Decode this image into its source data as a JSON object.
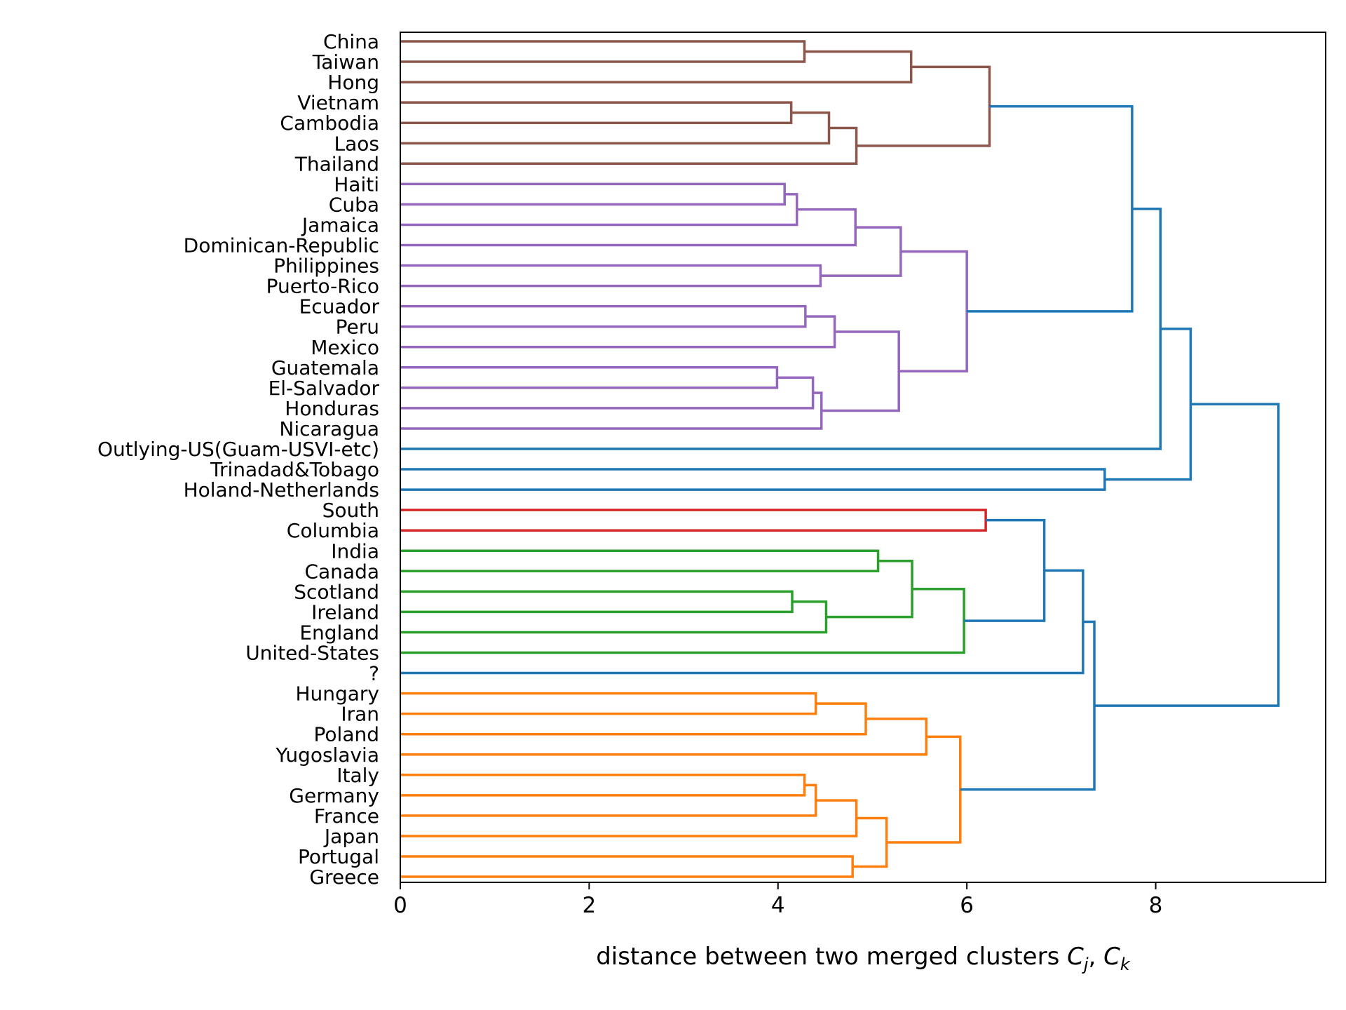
{
  "chart_data": {
    "type": "dendrogram",
    "orientation": "horizontal",
    "xlabel": "distance between two merged clusters ",
    "xlabel_math": "C",
    "xlabel_sub1": "j",
    "xlabel_sep": ", ",
    "xlabel_sub2": "k",
    "xlim": [
      0,
      9.8
    ],
    "xticks": [
      0,
      2,
      4,
      6,
      8
    ],
    "colors": {
      "brown": "#8c564b",
      "purple": "#9467bd",
      "blue": "#1f77b4",
      "red": "#d62728",
      "green": "#2ca02c",
      "orange": "#ff7f0e"
    },
    "leaves": [
      "China",
      "Taiwan",
      "Hong",
      "Vietnam",
      "Cambodia",
      "Laos",
      "Thailand",
      "Haiti",
      "Cuba",
      "Jamaica",
      "Dominican-Republic",
      "Philippines",
      "Puerto-Rico",
      "Ecuador",
      "Peru",
      "Mexico",
      "Guatemala",
      "El-Salvador",
      "Honduras",
      "Nicaragua",
      "Outlying-US(Guam-USVI-etc)",
      "Trinadad&Tobago",
      "Holand-Netherlands",
      "South",
      "Columbia",
      "India",
      "Canada",
      "Scotland",
      "Ireland",
      "England",
      "United-States",
      "?",
      "Hungary",
      "Iran",
      "Poland",
      "Yugoslavia",
      "Italy",
      "Germany",
      "France",
      "Japan",
      "Portugal",
      "Greece"
    ],
    "merges": [
      {
        "a": "L0",
        "b": "L1",
        "h": 4.28,
        "c": "brown"
      },
      {
        "a": "M0",
        "b": "L2",
        "h": 5.41,
        "c": "brown"
      },
      {
        "a": "L3",
        "b": "L4",
        "h": 4.14,
        "c": "brown"
      },
      {
        "a": "M2",
        "b": "L5",
        "h": 4.54,
        "c": "brown"
      },
      {
        "a": "M3",
        "b": "L6",
        "h": 4.83,
        "c": "brown"
      },
      {
        "a": "M1",
        "b": "M4",
        "h": 6.24,
        "c": "brown"
      },
      {
        "a": "L7",
        "b": "L8",
        "h": 4.07,
        "c": "purple"
      },
      {
        "a": "M6",
        "b": "L9",
        "h": 4.2,
        "c": "purple"
      },
      {
        "a": "M7",
        "b": "L10",
        "h": 4.82,
        "c": "purple"
      },
      {
        "a": "L11",
        "b": "L12",
        "h": 4.45,
        "c": "purple"
      },
      {
        "a": "M8",
        "b": "M9",
        "h": 5.3,
        "c": "purple"
      },
      {
        "a": "L13",
        "b": "L14",
        "h": 4.29,
        "c": "purple"
      },
      {
        "a": "M11",
        "b": "L15",
        "h": 4.6,
        "c": "purple"
      },
      {
        "a": "L16",
        "b": "L17",
        "h": 3.99,
        "c": "purple"
      },
      {
        "a": "M13",
        "b": "L18",
        "h": 4.37,
        "c": "purple"
      },
      {
        "a": "M14",
        "b": "L19",
        "h": 4.46,
        "c": "purple"
      },
      {
        "a": "M12",
        "b": "M15",
        "h": 5.28,
        "c": "purple"
      },
      {
        "a": "M10",
        "b": "M16",
        "h": 6.0,
        "c": "purple"
      },
      {
        "a": "M5",
        "b": "M17",
        "h": 7.75,
        "c": "blue"
      },
      {
        "a": "M18",
        "b": "L20",
        "h": 8.05,
        "c": "blue"
      },
      {
        "a": "L21",
        "b": "L22",
        "h": 7.46,
        "c": "blue"
      },
      {
        "a": "M19",
        "b": "M20",
        "h": 8.37,
        "c": "blue"
      },
      {
        "a": "L23",
        "b": "L24",
        "h": 6.2,
        "c": "red"
      },
      {
        "a": "L25",
        "b": "L26",
        "h": 5.06,
        "c": "green"
      },
      {
        "a": "L27",
        "b": "L28",
        "h": 4.15,
        "c": "green"
      },
      {
        "a": "M24",
        "b": "L29",
        "h": 4.51,
        "c": "green"
      },
      {
        "a": "M23",
        "b": "M25",
        "h": 5.42,
        "c": "green"
      },
      {
        "a": "M26",
        "b": "L30",
        "h": 5.97,
        "c": "green"
      },
      {
        "a": "M22",
        "b": "M27",
        "h": 6.82,
        "c": "blue"
      },
      {
        "a": "M28",
        "b": "L31",
        "h": 7.23,
        "c": "blue"
      },
      {
        "a": "L32",
        "b": "L33",
        "h": 4.4,
        "c": "orange"
      },
      {
        "a": "M30",
        "b": "L34",
        "h": 4.93,
        "c": "orange"
      },
      {
        "a": "M31",
        "b": "L35",
        "h": 5.57,
        "c": "orange"
      },
      {
        "a": "L36",
        "b": "L37",
        "h": 4.28,
        "c": "orange"
      },
      {
        "a": "M33",
        "b": "L38",
        "h": 4.4,
        "c": "orange"
      },
      {
        "a": "M34",
        "b": "L39",
        "h": 4.83,
        "c": "orange"
      },
      {
        "a": "L40",
        "b": "L41",
        "h": 4.79,
        "c": "orange"
      },
      {
        "a": "M35",
        "b": "M36",
        "h": 5.15,
        "c": "orange"
      },
      {
        "a": "M32",
        "b": "M37",
        "h": 5.93,
        "c": "orange"
      },
      {
        "a": "M29",
        "b": "M38",
        "h": 7.35,
        "c": "blue"
      },
      {
        "a": "M21",
        "b": "M39",
        "h": 9.3,
        "c": "blue"
      }
    ]
  }
}
